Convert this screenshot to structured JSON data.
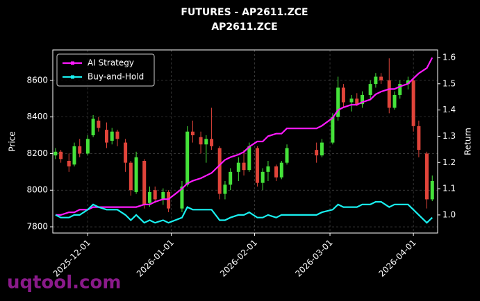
{
  "chart_data": {
    "type": "candlestick",
    "title": "FUTURES - AP2611.ZCE",
    "subtitle": "AP2611.ZCE",
    "ylabel": "Price",
    "y2label": "Return",
    "watermark": "uqtool.com",
    "up_color": "#45e33a",
    "down_color": "#e0443a",
    "grid": true,
    "legend": "upper left",
    "xlim": [
      "2025-11-18",
      "2026-04-10"
    ],
    "xticks": [
      "2025-12-01",
      "2026-01-01",
      "2026-02-01",
      "2026-03-01",
      "2026-04-01"
    ],
    "ylim": [
      7766,
      8766
    ],
    "yticks": [
      7800,
      8000,
      8200,
      8400,
      8600
    ],
    "y2lim": [
      0.931,
      1.629
    ],
    "y2ticks": [
      {
        "value": 1,
        "label": "1.0"
      },
      1.1,
      1.2,
      1.3,
      1.4,
      1.5,
      1.6
    ],
    "x": [
      "2025-11-19",
      "2025-11-21",
      "2025-11-24",
      "2025-11-26",
      "2025-11-28",
      "2025-12-01",
      "2025-12-03",
      "2025-12-05",
      "2025-12-08",
      "2025-12-10",
      "2025-12-12",
      "2025-12-15",
      "2025-12-17",
      "2025-12-19",
      "2025-12-22",
      "2025-12-24",
      "2025-12-26",
      "2025-12-29",
      "2025-12-31",
      "2026-01-05",
      "2026-01-07",
      "2026-01-09",
      "2026-01-12",
      "2026-01-14",
      "2026-01-16",
      "2026-01-19",
      "2026-01-21",
      "2026-01-23",
      "2026-01-26",
      "2026-01-28",
      "2026-01-30",
      "2026-02-02",
      "2026-02-04",
      "2026-02-06",
      "2026-02-09",
      "2026-02-11",
      "2026-02-13",
      "2026-02-24",
      "2026-02-26",
      "2026-03-02",
      "2026-03-04",
      "2026-03-06",
      "2026-03-09",
      "2026-03-11",
      "2026-03-13",
      "2026-03-16",
      "2026-03-18",
      "2026-03-20",
      "2026-03-23",
      "2026-03-25",
      "2026-03-27",
      "2026-03-30",
      "2026-04-01",
      "2026-04-03",
      "2026-04-06",
      "2026-04-08"
    ],
    "open": [
      8190,
      8210,
      8160,
      8140,
      8240,
      8200,
      8300,
      8380,
      8330,
      8270,
      8320,
      8260,
      8150,
      7990,
      8160,
      7930,
      8000,
      7950,
      7990,
      7900,
      8030,
      8320,
      8290,
      8250,
      8280,
      8230,
      7980,
      8030,
      8100,
      8150,
      8110,
      8230,
      8040,
      8100,
      8130,
      8070,
      8150,
      8220,
      8190,
      8260,
      8400,
      8560,
      8480,
      8500,
      8470,
      8520,
      8580,
      8620,
      8600,
      8450,
      8520,
      8580,
      8600,
      8350,
      8200,
      7950
    ],
    "high": [
      8230,
      8220,
      8200,
      8260,
      8280,
      8300,
      8410,
      8400,
      8370,
      8340,
      8330,
      8280,
      8160,
      8210,
      8170,
      8020,
      8020,
      8010,
      8000,
      8050,
      8350,
      8380,
      8320,
      8300,
      8450,
      8240,
      8050,
      8120,
      8180,
      8220,
      8260,
      8240,
      8120,
      8160,
      8140,
      8160,
      8250,
      8260,
      8280,
      8420,
      8620,
      8580,
      8520,
      8530,
      8540,
      8600,
      8640,
      8640,
      8720,
      8540,
      8600,
      8620,
      8610,
      8380,
      8210,
      8080
    ],
    "low": [
      8170,
      8150,
      8100,
      8130,
      8180,
      8190,
      8290,
      8320,
      8230,
      8250,
      8240,
      8100,
      7970,
      7980,
      7900,
      7910,
      7930,
      7920,
      7880,
      7880,
      8020,
      8260,
      8200,
      8150,
      8220,
      7950,
      7950,
      8000,
      8050,
      8080,
      8100,
      8020,
      8000,
      8050,
      8050,
      8060,
      8140,
      8150,
      8180,
      8250,
      8380,
      8450,
      8430,
      8460,
      8450,
      8500,
      8560,
      8580,
      8420,
      8440,
      8500,
      8550,
      8320,
      8180,
      7900,
      7940
    ],
    "close": [
      8210,
      8170,
      8130,
      8240,
      8200,
      8280,
      8390,
      8340,
      8260,
      8320,
      8280,
      8150,
      8000,
      8180,
      7920,
      7990,
      7950,
      7990,
      7900,
      8020,
      8320,
      8300,
      8250,
      8280,
      8240,
      7980,
      8030,
      8100,
      8150,
      8110,
      8240,
      8040,
      8100,
      8130,
      8070,
      8150,
      8230,
      8190,
      8260,
      8400,
      8560,
      8480,
      8500,
      8470,
      8520,
      8580,
      8620,
      8600,
      8450,
      8520,
      8580,
      8600,
      8350,
      8220,
      7950,
      8050
    ],
    "series": [
      {
        "name": "AI Strategy",
        "color": "#ff1aff",
        "axis": "y2",
        "values": [
          1.0,
          1.0,
          1.01,
          1.01,
          1.02,
          1.02,
          1.03,
          1.03,
          1.03,
          1.03,
          1.03,
          1.03,
          1.03,
          1.03,
          1.04,
          1.04,
          1.05,
          1.06,
          1.06,
          1.1,
          1.12,
          1.13,
          1.14,
          1.15,
          1.16,
          1.19,
          1.21,
          1.22,
          1.23,
          1.24,
          1.26,
          1.28,
          1.28,
          1.3,
          1.31,
          1.31,
          1.33,
          1.33,
          1.34,
          1.37,
          1.4,
          1.41,
          1.42,
          1.42,
          1.43,
          1.44,
          1.46,
          1.47,
          1.48,
          1.48,
          1.49,
          1.5,
          1.52,
          1.54,
          1.56,
          1.6
        ]
      },
      {
        "name": "Buy-and-Hold",
        "color": "#19f0f0",
        "axis": "y2",
        "values": [
          1.0,
          0.99,
          0.99,
          1.0,
          1.0,
          1.02,
          1.04,
          1.03,
          1.02,
          1.02,
          1.02,
          1.0,
          0.98,
          1.0,
          0.97,
          0.98,
          0.97,
          0.98,
          0.97,
          0.99,
          1.03,
          1.02,
          1.02,
          1.02,
          1.02,
          0.98,
          0.98,
          0.99,
          1.0,
          1.0,
          1.01,
          0.99,
          0.99,
          1.0,
          0.99,
          1.0,
          1.0,
          1.0,
          1.01,
          1.02,
          1.04,
          1.03,
          1.03,
          1.03,
          1.04,
          1.04,
          1.05,
          1.05,
          1.03,
          1.04,
          1.04,
          1.04,
          1.02,
          1.0,
          0.97,
          0.99
        ]
      }
    ]
  }
}
